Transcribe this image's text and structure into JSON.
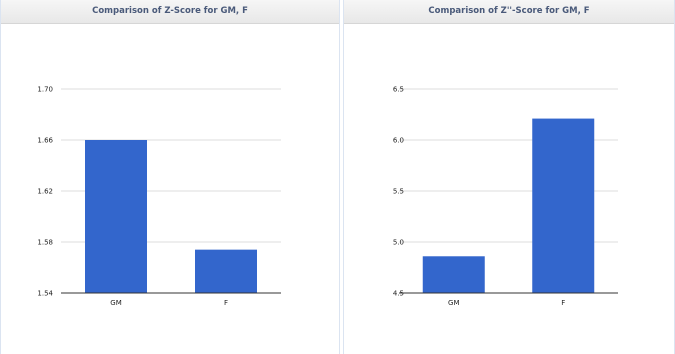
{
  "chart_data": [
    {
      "type": "bar",
      "title": "Comparison of Z-Score for GM, F",
      "categories": [
        "GM",
        "F"
      ],
      "values": [
        1.66,
        1.574
      ],
      "ylim": [
        1.54,
        1.7
      ],
      "yticks": [
        1.54,
        1.58,
        1.62,
        1.66,
        1.7
      ],
      "ytick_labels": [
        "1.54",
        "1.58",
        "1.62",
        "1.66",
        "1.70"
      ],
      "xlabel": "",
      "ylabel": "",
      "bar_color": "#3366cc",
      "grid": true,
      "legend": "none"
    },
    {
      "type": "bar",
      "title": "Comparison of Z''-Score for GM, F",
      "categories": [
        "GM",
        "F"
      ],
      "values": [
        4.86,
        6.21
      ],
      "ylim": [
        4.5,
        6.5
      ],
      "yticks": [
        4.5,
        5.0,
        5.5,
        6.0,
        6.5
      ],
      "ytick_labels": [
        "4.5",
        "5.0",
        "5.5",
        "6.0",
        "6.5"
      ],
      "xlabel": "",
      "ylabel": "",
      "bar_color": "#3366cc",
      "grid": true,
      "legend": "none"
    }
  ]
}
